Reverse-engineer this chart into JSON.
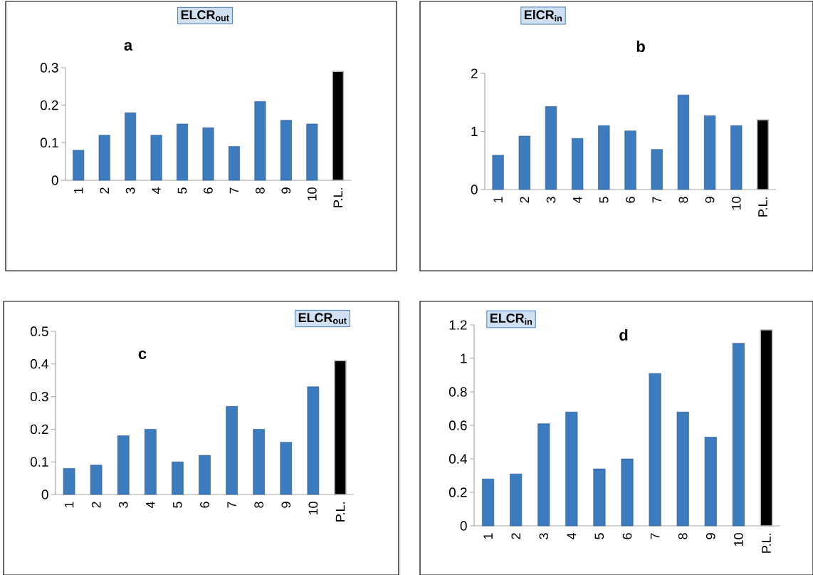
{
  "chart_data": [
    {
      "type": "bar",
      "title": "ELCR$_{out}$",
      "subtitle": "a",
      "categories": [
        "1",
        "2",
        "3",
        "4",
        "5",
        "6",
        "7",
        "8",
        "9",
        "10",
        "P.L."
      ],
      "values": [
        0.08,
        0.12,
        0.18,
        0.12,
        0.15,
        0.14,
        0.09,
        0.21,
        0.16,
        0.15,
        0.29
      ],
      "colors": [
        "#3d7bbf",
        "#3d7bbf",
        "#3d7bbf",
        "#3d7bbf",
        "#3d7bbf",
        "#3d7bbf",
        "#3d7bbf",
        "#3d7bbf",
        "#3d7bbf",
        "#3d7bbf",
        "#000000"
      ],
      "ylim": [
        0,
        0.3
      ],
      "yticks": [
        0,
        0.1,
        0.2,
        0.3
      ]
    },
    {
      "type": "bar",
      "title": "ElCR$_{in}$",
      "subtitle": "b",
      "categories": [
        "1",
        "2",
        "3",
        "4",
        "5",
        "6",
        "7",
        "8",
        "9",
        "10",
        "P.L."
      ],
      "values": [
        0.59,
        0.92,
        1.43,
        0.88,
        1.1,
        1.01,
        0.69,
        1.63,
        1.27,
        1.1,
        1.2
      ],
      "colors": [
        "#3d7bbf",
        "#3d7bbf",
        "#3d7bbf",
        "#3d7bbf",
        "#3d7bbf",
        "#3d7bbf",
        "#3d7bbf",
        "#3d7bbf",
        "#3d7bbf",
        "#3d7bbf",
        "#000000"
      ],
      "ylim": [
        0,
        2
      ],
      "yticks": [
        0,
        1,
        2
      ]
    },
    {
      "type": "bar",
      "title": "ELCR$_{out}$",
      "subtitle": "c",
      "categories": [
        "1",
        "2",
        "3",
        "4",
        "5",
        "6",
        "7",
        "8",
        "9",
        "10",
        "P.L."
      ],
      "values": [
        0.08,
        0.09,
        0.18,
        0.2,
        0.1,
        0.12,
        0.27,
        0.2,
        0.16,
        0.33,
        0.41
      ],
      "colors": [
        "#3d7bbf",
        "#3d7bbf",
        "#3d7bbf",
        "#3d7bbf",
        "#3d7bbf",
        "#3d7bbf",
        "#3d7bbf",
        "#3d7bbf",
        "#3d7bbf",
        "#3d7bbf",
        "#000000"
      ],
      "ylim": [
        0,
        0.5
      ],
      "yticks": [
        0,
        0.1,
        0.2,
        0.3,
        0.4,
        0.5
      ]
    },
    {
      "type": "bar",
      "title": "ELCR$_{in}$",
      "subtitle": "d",
      "categories": [
        "1",
        "2",
        "3",
        "4",
        "5",
        "6",
        "7",
        "8",
        "9",
        "10",
        "P.L."
      ],
      "values": [
        0.28,
        0.31,
        0.61,
        0.68,
        0.34,
        0.4,
        0.91,
        0.68,
        0.53,
        1.09,
        1.17
      ],
      "colors": [
        "#3d7bbf",
        "#3d7bbf",
        "#3d7bbf",
        "#3d7bbf",
        "#3d7bbf",
        "#3d7bbf",
        "#3d7bbf",
        "#3d7bbf",
        "#3d7bbf",
        "#3d7bbf",
        "#000000"
      ],
      "ylim": [
        0,
        1.2
      ],
      "yticks": [
        0,
        0.2,
        0.4,
        0.6,
        0.8,
        1,
        1.2
      ]
    }
  ]
}
